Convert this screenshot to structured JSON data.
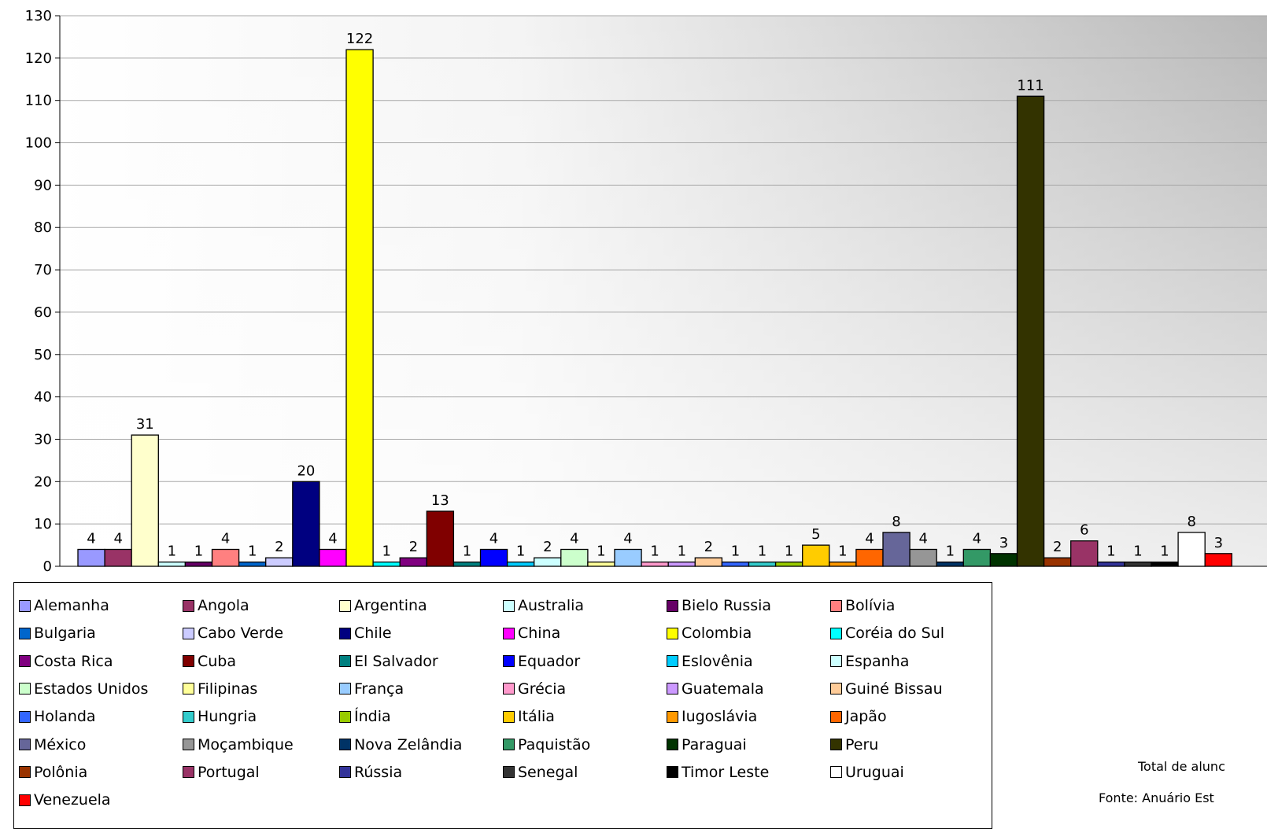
{
  "chart_data": {
    "type": "bar",
    "ylim": [
      0,
      130
    ],
    "yticks": [
      0,
      10,
      20,
      30,
      40,
      50,
      60,
      70,
      80,
      90,
      100,
      110,
      120,
      130
    ],
    "grid": true,
    "legend_position": "bottom",
    "categories": [
      "Alemanha",
      "Angola",
      "Argentina",
      "Australia",
      "Bielo Russia",
      "Bolívia",
      "Bulgaria",
      "Cabo Verde",
      "Chile",
      "China",
      "Colombia",
      "Coréia do Sul",
      "Costa Rica",
      "Cuba",
      "El Salvador",
      "Equador",
      "Eslovênia",
      "Espanha",
      "Estados Unidos",
      "Filipinas",
      "França",
      "Grécia",
      "Guatemala",
      "Guiné Bissau",
      "Holanda",
      "Hungria",
      "Índia",
      "Itália",
      "Iugoslávia",
      "Japão",
      "México",
      "Moçambique",
      "Nova Zelândia",
      "Paquistão",
      "Paraguai",
      "Peru",
      "Polônia",
      "Portugal",
      "Rússia",
      "Senegal",
      "Timor Leste",
      "Uruguai",
      "Venezuela"
    ],
    "values": [
      4,
      4,
      31,
      1,
      1,
      4,
      1,
      2,
      20,
      4,
      122,
      1,
      2,
      13,
      1,
      4,
      1,
      2,
      4,
      1,
      4,
      1,
      1,
      2,
      1,
      1,
      1,
      5,
      1,
      4,
      8,
      4,
      1,
      4,
      3,
      111,
      2,
      6,
      1,
      1,
      1,
      8,
      3
    ],
    "colors": [
      "#9999ff",
      "#993366",
      "#ffffcc",
      "#ccffff",
      "#660066",
      "#ff8080",
      "#0066cc",
      "#ccccff",
      "#000080",
      "#ff00ff",
      "#ffff00",
      "#00ffff",
      "#800080",
      "#800000",
      "#008080",
      "#0000ff",
      "#00ccff",
      "#ccffff",
      "#ccffcc",
      "#ffff99",
      "#99ccff",
      "#ff99cc",
      "#cc99ff",
      "#ffcc99",
      "#3366ff",
      "#33cccc",
      "#99cc00",
      "#ffcc00",
      "#ff9900",
      "#ff6600",
      "#666699",
      "#969696",
      "#003366",
      "#339966",
      "#003300",
      "#333300",
      "#993300",
      "#993366",
      "#333399",
      "#333333",
      "#000000",
      "#ffffff",
      "#ff0000"
    ]
  },
  "notes": {
    "total": "Total de alunc",
    "source": "Fonte: Anuário Est"
  }
}
